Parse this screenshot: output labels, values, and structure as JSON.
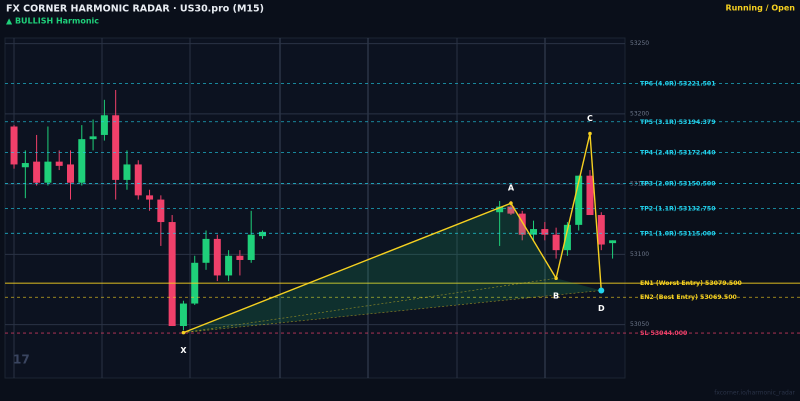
{
  "header": {
    "title": "FX CORNER HARMONIC RADAR  ·  US30.pro (M15)",
    "signal": "▲ BULLISH  Harmonic",
    "status": "Running / Open"
  },
  "chart_data": {
    "type": "candlestick",
    "x": [
      0,
      1,
      2,
      3,
      4,
      5,
      6,
      7,
      8,
      9,
      10,
      11,
      12,
      13,
      14,
      15,
      16,
      17,
      18,
      19,
      20,
      21,
      22,
      43,
      44,
      45,
      46,
      47,
      48,
      49,
      50,
      51,
      52,
      53
    ],
    "open": [
      53191,
      53162,
      53166,
      53151,
      53166,
      53164,
      53151,
      53182,
      53185,
      53199,
      53153,
      53164,
      53142,
      53139,
      53123,
      53049,
      53065,
      53094,
      53111,
      53085,
      53099,
      53096,
      53113,
      53130,
      53134,
      53129,
      53114,
      53118,
      53114,
      53103,
      53121,
      53156,
      53128,
      53108
    ],
    "high": [
      53192,
      53174,
      53185,
      53191,
      53174,
      53174,
      53192,
      53196,
      53210,
      53217,
      53174,
      53167,
      53146,
      53142,
      53128,
      53067,
      53099,
      53117,
      53114,
      53103,
      53103,
      53131,
      53117,
      53138,
      53138,
      53131,
      53124,
      53123,
      53119,
      53123,
      53156,
      53160,
      53130,
      53110
    ],
    "low": [
      53161,
      53140,
      53149,
      53149,
      53160,
      53139,
      53149,
      53174,
      53181,
      53139,
      53146,
      53139,
      53131,
      53106,
      53049,
      53046,
      53064,
      53089,
      53081,
      53081,
      53085,
      53094,
      53111,
      53106,
      53128,
      53110,
      53110,
      53110,
      53097,
      53099,
      53117,
      53128,
      53103,
      53097
    ],
    "close": [
      53164,
      53165,
      53151,
      53166,
      53163,
      53151,
      53182,
      53184,
      53199,
      53153,
      53164,
      53142,
      53139,
      53123,
      53049,
      53065,
      53094,
      53111,
      53085,
      53099,
      53096,
      53114,
      53116,
      53134,
      53129,
      53114,
      53118,
      53114,
      53103,
      53121,
      53156,
      53128,
      53107,
      53110
    ],
    "up_color": "#1fd07a",
    "down_color": "#f0406a",
    "xlim": [
      -0.8,
      54.1
    ],
    "ylim": [
      53012,
      53254
    ],
    "yticks": [
      53050,
      53100,
      53150,
      53200,
      53250
    ],
    "grid": true,
    "pattern": {
      "points": [
        "X",
        "A",
        "B",
        "C",
        "D"
      ],
      "x": [
        15,
        44,
        48,
        51,
        52
      ],
      "y": [
        53044.3,
        53136.4,
        53083,
        53186,
        53074.3
      ],
      "color": "#f5d020",
      "end_color": "#22d3ee"
    },
    "levels": [
      {
        "label": "TP6 (4.0R)  53221.501",
        "value": 53221.501,
        "color": "#22d3ee",
        "style": "dashed"
      },
      {
        "label": "TP5 (3.1R)  53194.379",
        "value": 53194.379,
        "color": "#22d3ee",
        "style": "dashed"
      },
      {
        "label": "TP4 (2.4R)  53172.440",
        "value": 53172.44,
        "color": "#22d3ee",
        "style": "dashed"
      },
      {
        "label": "TP3 (2.0R)  53150.500",
        "value": 53150.5,
        "color": "#22d3ee",
        "style": "dashed"
      },
      {
        "label": "TP2 (1.1R)  53132.750",
        "value": 53132.75,
        "color": "#22d3ee",
        "style": "dashed"
      },
      {
        "label": "TP1 (1.0R)  53115.000",
        "value": 53115,
        "color": "#22d3ee",
        "style": "dashed"
      },
      {
        "label": "EN1 (Worst Entry)  53079.500",
        "value": 53079.5,
        "color": "#f5d020",
        "style": "solid"
      },
      {
        "label": "EN2 (Best Entry)  53069.500",
        "value": 53069.5,
        "color": "#f5d020",
        "style": "dashed"
      },
      {
        "label": "SL  53044.000",
        "value": 53044,
        "color": "#f0406a",
        "style": "dashed"
      }
    ]
  },
  "watermark": "17",
  "footer": "fxcorner.io/harmonic_radar"
}
